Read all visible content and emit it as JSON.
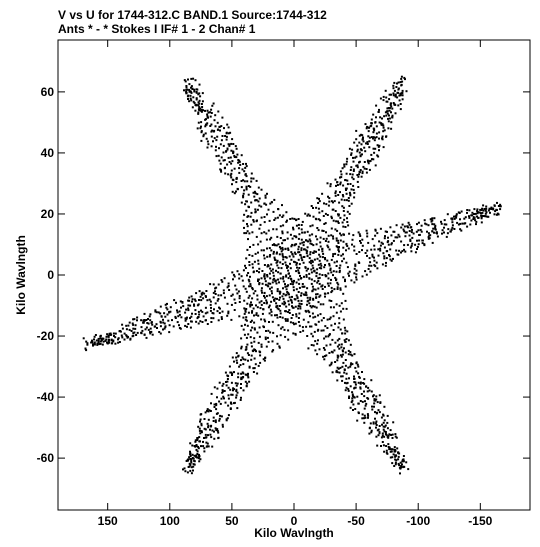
{
  "chart_data": {
    "type": "scatter",
    "title_line1": "V vs U for 1744-312.C BAND.1   Source:1744-312",
    "title_line2": "Ants * - *     Stokes I   IF# 1 - 2   Chan# 1",
    "xlabel": "Kilo Wavlngth",
    "ylabel": "Kilo Wavlngth",
    "xlim": [
      190,
      -190
    ],
    "ylim": [
      -77,
      77
    ],
    "xticks": [
      150,
      100,
      50,
      0,
      -50,
      -100,
      -150
    ],
    "xtick_labels": [
      "150",
      "100",
      "50",
      "0",
      "-50",
      "-100",
      "-150"
    ],
    "yticks": [
      60,
      40,
      20,
      0,
      -20,
      -40,
      -60
    ],
    "ytick_labels": [
      "60",
      "40",
      "20",
      "0",
      "-20",
      "-40",
      "-60"
    ],
    "point_color": "#000000",
    "pattern": {
      "description_of_structure": "six-armed uv coverage star",
      "arm_directions_deg": [
        60,
        120,
        162,
        240,
        300,
        342
      ],
      "max_radius": 185,
      "radial_rows": 28,
      "tracks": 22
    }
  }
}
